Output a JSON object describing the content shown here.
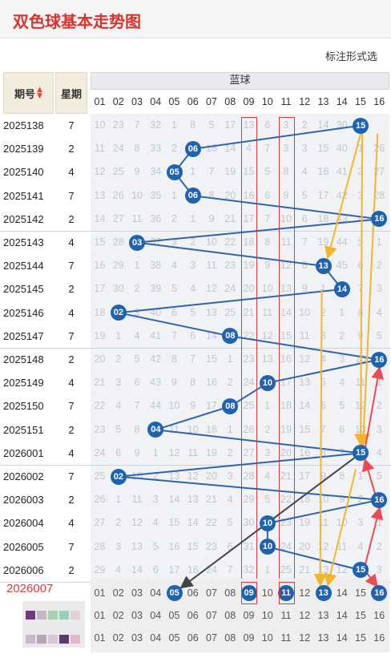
{
  "page_title": "双色球基本走势图",
  "toolbar": {
    "mark_style_label": "标注形式选"
  },
  "table_head": {
    "period_label": "期号",
    "week_label": "星期",
    "blue_label": "蓝球"
  },
  "numbers": [
    "01",
    "02",
    "03",
    "04",
    "05",
    "06",
    "07",
    "08",
    "09",
    "10",
    "11",
    "12",
    "13",
    "14",
    "15",
    "16"
  ],
  "rows": [
    {
      "period": "2025138",
      "week": "7",
      "blue": 15,
      "cells": [
        "10",
        "23",
        "7",
        "32",
        "1",
        "8",
        "5",
        "17",
        "13",
        "6",
        "3",
        "2",
        "14",
        "30",
        "",
        ""
      ]
    },
    {
      "period": "2025139",
      "week": "2",
      "blue": 6,
      "cells": [
        "11",
        "24",
        "8",
        "33",
        "2",
        "",
        "18",
        "14",
        "4",
        "7",
        "3",
        "3",
        "15",
        "40",
        "1",
        "26"
      ]
    },
    {
      "period": "2025140",
      "week": "4",
      "blue": 5,
      "cells": [
        "12",
        "25",
        "9",
        "34",
        "",
        "1",
        "7",
        "19",
        "15",
        "5",
        "8",
        "4",
        "16",
        "41",
        "2",
        "27"
      ]
    },
    {
      "period": "2025141",
      "week": "7",
      "blue": 6,
      "cells": [
        "13",
        "26",
        "10",
        "35",
        "1",
        "",
        "8",
        "20",
        "16",
        "6",
        "9",
        "5",
        "17",
        "42",
        "3",
        "28"
      ]
    },
    {
      "period": "2025142",
      "week": "2",
      "blue": 16,
      "cells": [
        "14",
        "27",
        "11",
        "36",
        "2",
        "1",
        "9",
        "21",
        "17",
        "7",
        "10",
        "6",
        "18",
        "43",
        "4",
        ""
      ]
    },
    {
      "period": "2025143",
      "week": "4",
      "blue": 3,
      "cells": [
        "15",
        "28",
        "",
        "37",
        "3",
        "2",
        "10",
        "22",
        "18",
        "8",
        "11",
        "7",
        "19",
        "44",
        "5",
        "1"
      ]
    },
    {
      "period": "2025144",
      "week": "7",
      "blue": 13,
      "cells": [
        "16",
        "29",
        "1",
        "38",
        "4",
        "3",
        "11",
        "23",
        "19",
        "9",
        "12",
        "8",
        "",
        "45",
        "6",
        "2"
      ]
    },
    {
      "period": "2025145",
      "week": "2",
      "blue": 14,
      "cells": [
        "17",
        "30",
        "2",
        "39",
        "5",
        "4",
        "12",
        "24",
        "20",
        "10",
        "13",
        "9",
        "1",
        "",
        "7",
        "3"
      ]
    },
    {
      "period": "2025146",
      "week": "4",
      "blue": 2,
      "cells": [
        "18",
        "",
        "3",
        "40",
        "6",
        "5",
        "13",
        "25",
        "21",
        "11",
        "14",
        "10",
        "2",
        "1",
        "8",
        "4"
      ]
    },
    {
      "period": "2025147",
      "week": "7",
      "blue": 8,
      "cells": [
        "19",
        "1",
        "4",
        "41",
        "7",
        "6",
        "14",
        "",
        "22",
        "12",
        "15",
        "11",
        "3",
        "2",
        "9",
        "5"
      ]
    },
    {
      "period": "2025148",
      "week": "2",
      "blue": 16,
      "cells": [
        "20",
        "2",
        "5",
        "42",
        "8",
        "7",
        "15",
        "1",
        "23",
        "13",
        "16",
        "12",
        "4",
        "3",
        "10",
        ""
      ]
    },
    {
      "period": "2025149",
      "week": "4",
      "blue": 10,
      "cells": [
        "21",
        "3",
        "6",
        "43",
        "9",
        "8",
        "16",
        "2",
        "24",
        "",
        "17",
        "13",
        "5",
        "4",
        "11",
        "1"
      ]
    },
    {
      "period": "2025150",
      "week": "7",
      "blue": 8,
      "cells": [
        "22",
        "4",
        "7",
        "44",
        "10",
        "9",
        "17",
        "",
        "25",
        "1",
        "18",
        "14",
        "6",
        "5",
        "12",
        "2"
      ]
    },
    {
      "period": "2025151",
      "week": "2",
      "blue": 4,
      "cells": [
        "23",
        "5",
        "8",
        "",
        "11",
        "10",
        "18",
        "1",
        "26",
        "2",
        "19",
        "15",
        "7",
        "6",
        "13",
        "3"
      ]
    },
    {
      "period": "2026001",
      "week": "4",
      "blue": 15,
      "cells": [
        "24",
        "6",
        "9",
        "1",
        "12",
        "11",
        "19",
        "2",
        "27",
        "3",
        "20",
        "16",
        "8",
        "7",
        "",
        "4"
      ]
    },
    {
      "period": "2026002",
      "week": "7",
      "blue": 2,
      "cells": [
        "25",
        "",
        "10",
        "2",
        "13",
        "12",
        "20",
        "3",
        "28",
        "4",
        "21",
        "17",
        "9",
        "8",
        "1",
        "5"
      ]
    },
    {
      "period": "2026003",
      "week": "2",
      "blue": 16,
      "cells": [
        "26",
        "1",
        "11",
        "3",
        "14",
        "13",
        "21",
        "4",
        "29",
        "5",
        "22",
        "18",
        "10",
        "9",
        "2",
        ""
      ]
    },
    {
      "period": "2026004",
      "week": "4",
      "blue": 10,
      "cells": [
        "27",
        "2",
        "12",
        "4",
        "15",
        "14",
        "22",
        "5",
        "30",
        "",
        "23",
        "19",
        "11",
        "10",
        "3",
        "1"
      ]
    },
    {
      "period": "2026005",
      "week": "7",
      "blue": 10,
      "cells": [
        "28",
        "3",
        "13",
        "5",
        "16",
        "15",
        "23",
        "6",
        "31",
        "",
        "24",
        "20",
        "12",
        "11",
        "4",
        "2"
      ]
    },
    {
      "period": "2026006",
      "week": "2",
      "blue": 15,
      "cells": [
        "29",
        "4",
        "14",
        "6",
        "17",
        "16",
        "24",
        "7",
        "32",
        "1",
        "25",
        "21",
        "13",
        "12",
        "",
        "3"
      ]
    }
  ],
  "next_period": {
    "label": "2026007",
    "picks": [
      5,
      9,
      11,
      13,
      16
    ]
  },
  "colors": {
    "ball": "#1f63b0",
    "highlight": "#e0383a",
    "arrow_yellow": "#f5b52a",
    "arrow_red": "#ee4a55",
    "arrow_dark": "#444444"
  }
}
